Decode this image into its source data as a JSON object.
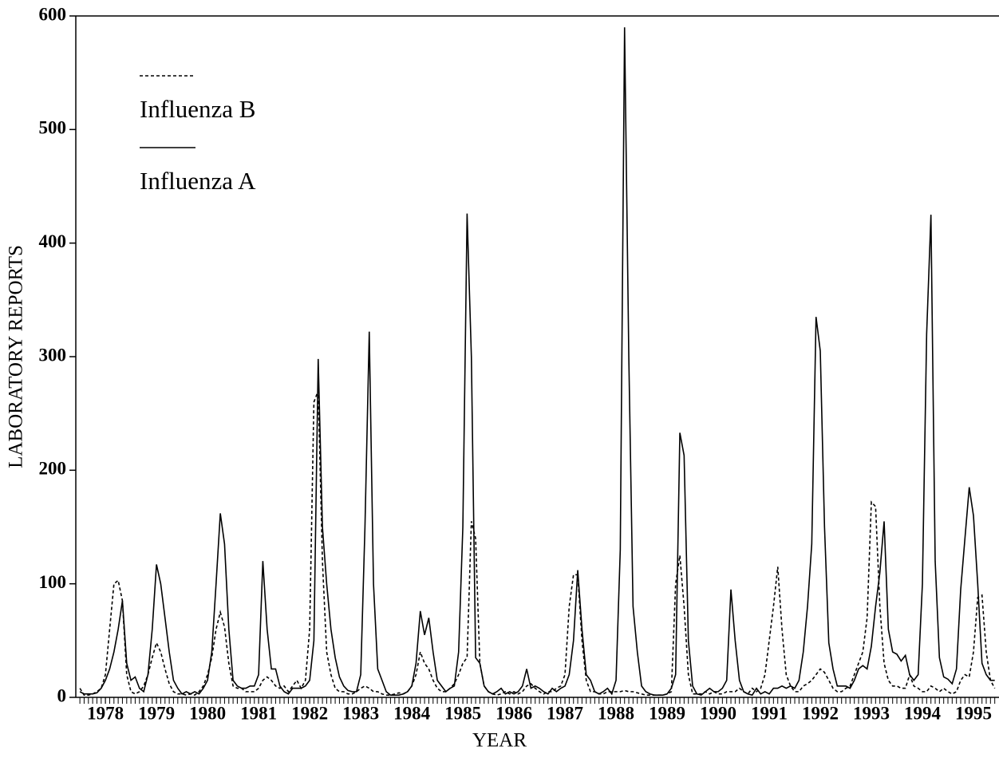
{
  "chart_data": {
    "type": "line",
    "x_label": "YEAR",
    "y_label": "LABORATORY REPORTS",
    "x": [
      1978,
      1978.083,
      1978.167,
      1978.25,
      1978.333,
      1978.417,
      1978.5,
      1978.583,
      1978.667,
      1978.75,
      1978.833,
      1978.917,
      1979,
      1979.083,
      1979.167,
      1979.25,
      1979.333,
      1979.417,
      1979.5,
      1979.583,
      1979.667,
      1979.75,
      1979.833,
      1979.917,
      1980,
      1980.083,
      1980.167,
      1980.25,
      1980.333,
      1980.417,
      1980.5,
      1980.583,
      1980.667,
      1980.75,
      1980.833,
      1980.917,
      1981,
      1981.083,
      1981.167,
      1981.25,
      1981.333,
      1981.417,
      1981.5,
      1981.583,
      1981.667,
      1981.75,
      1981.833,
      1981.917,
      1982,
      1982.083,
      1982.167,
      1982.25,
      1982.333,
      1982.417,
      1982.5,
      1982.583,
      1982.667,
      1982.75,
      1982.833,
      1982.917,
      1983,
      1983.083,
      1983.167,
      1983.25,
      1983.333,
      1983.417,
      1983.5,
      1983.583,
      1983.667,
      1983.75,
      1983.833,
      1983.917,
      1984,
      1984.083,
      1984.167,
      1984.25,
      1984.333,
      1984.417,
      1984.5,
      1984.583,
      1984.667,
      1984.75,
      1984.833,
      1984.917,
      1985,
      1985.083,
      1985.167,
      1985.25,
      1985.333,
      1985.417,
      1985.5,
      1985.583,
      1985.667,
      1985.75,
      1985.833,
      1985.917,
      1986,
      1986.083,
      1986.167,
      1986.25,
      1986.333,
      1986.417,
      1986.5,
      1986.583,
      1986.667,
      1986.75,
      1986.833,
      1986.917,
      1987,
      1987.083,
      1987.167,
      1987.25,
      1987.333,
      1987.417,
      1987.5,
      1987.583,
      1987.667,
      1987.75,
      1987.833,
      1987.917,
      1988,
      1988.083,
      1988.167,
      1988.25,
      1988.333,
      1988.417,
      1988.5,
      1988.583,
      1988.667,
      1988.75,
      1988.833,
      1988.917,
      1989,
      1989.083,
      1989.167,
      1989.25,
      1989.333,
      1989.417,
      1989.5,
      1989.583,
      1989.667,
      1989.75,
      1989.833,
      1989.917,
      1990,
      1990.083,
      1990.167,
      1990.25,
      1990.333,
      1990.417,
      1990.5,
      1990.583,
      1990.667,
      1990.75,
      1990.833,
      1990.917,
      1991,
      1991.083,
      1991.167,
      1991.25,
      1991.333,
      1991.417,
      1991.5,
      1991.583,
      1991.667,
      1991.75,
      1991.833,
      1991.917,
      1992,
      1992.083,
      1992.167,
      1992.25,
      1992.333,
      1992.417,
      1992.5,
      1992.583,
      1992.667,
      1992.75,
      1992.833,
      1992.917,
      1993,
      1993.083,
      1993.167,
      1993.25,
      1993.333,
      1993.417,
      1993.5,
      1993.583,
      1993.667,
      1993.75,
      1993.833,
      1993.917,
      1994,
      1994.083,
      1994.167,
      1994.25,
      1994.333,
      1994.417,
      1994.5,
      1994.583,
      1994.667,
      1994.75,
      1994.833,
      1994.917,
      1995,
      1995.083,
      1995.167,
      1995.25,
      1995.333,
      1995.417,
      1995.5,
      1995.583,
      1995.667,
      1995.75,
      1995.833,
      1995.917
    ],
    "series": [
      {
        "name": "Influenza B",
        "color": "#000000",
        "linestyle": "dashed",
        "values": [
          8,
          2,
          2,
          3,
          5,
          8,
          20,
          60,
          100,
          103,
          85,
          20,
          5,
          3,
          5,
          10,
          20,
          35,
          48,
          40,
          25,
          12,
          5,
          3,
          3,
          2,
          3,
          2,
          5,
          10,
          20,
          35,
          60,
          75,
          62,
          30,
          10,
          8,
          8,
          5,
          5,
          5,
          8,
          15,
          18,
          15,
          10,
          8,
          10,
          5,
          10,
          15,
          8,
          15,
          60,
          260,
          270,
          120,
          40,
          20,
          8,
          5,
          5,
          3,
          3,
          5,
          8,
          10,
          8,
          5,
          5,
          3,
          2,
          2,
          3,
          4,
          3,
          5,
          10,
          20,
          40,
          30,
          25,
          15,
          8,
          5,
          5,
          8,
          12,
          20,
          30,
          35,
          155,
          140,
          30,
          10,
          5,
          3,
          2,
          3,
          5,
          3,
          5,
          3,
          5,
          10,
          12,
          8,
          5,
          3,
          5,
          5,
          8,
          10,
          20,
          80,
          108,
          108,
          50,
          15,
          5,
          5,
          3,
          3,
          5,
          5,
          5,
          5,
          6,
          5,
          5,
          4,
          3,
          2,
          2,
          2,
          2,
          2,
          3,
          5,
          100,
          125,
          80,
          20,
          3,
          3,
          3,
          5,
          3,
          5,
          3,
          3,
          5,
          5,
          5,
          8,
          5,
          3,
          8,
          5,
          8,
          20,
          50,
          80,
          115,
          60,
          20,
          10,
          5,
          5,
          10,
          12,
          15,
          20,
          25,
          22,
          15,
          8,
          5,
          5,
          8,
          10,
          20,
          30,
          40,
          70,
          172,
          168,
          80,
          30,
          15,
          10,
          10,
          8,
          8,
          20,
          10,
          8,
          5,
          5,
          10,
          8,
          5,
          8,
          5,
          3,
          5,
          15,
          20,
          18,
          40,
          88,
          90,
          40,
          15,
          8
        ]
      },
      {
        "name": "Influenza A",
        "color": "#000000",
        "linestyle": "solid",
        "values": [
          5,
          3,
          3,
          3,
          4,
          8,
          15,
          25,
          40,
          60,
          85,
          30,
          15,
          18,
          8,
          5,
          20,
          60,
          117,
          100,
          70,
          40,
          15,
          8,
          3,
          5,
          3,
          5,
          3,
          8,
          15,
          40,
          100,
          162,
          135,
          60,
          15,
          10,
          8,
          8,
          10,
          10,
          20,
          120,
          60,
          25,
          25,
          10,
          5,
          3,
          8,
          8,
          8,
          10,
          15,
          50,
          298,
          150,
          100,
          60,
          35,
          18,
          10,
          6,
          5,
          5,
          20,
          150,
          322,
          100,
          25,
          15,
          5,
          2,
          2,
          2,
          3,
          5,
          10,
          30,
          76,
          55,
          70,
          40,
          15,
          10,
          5,
          8,
          10,
          40,
          150,
          426,
          300,
          35,
          30,
          10,
          5,
          3,
          5,
          8,
          3,
          5,
          3,
          5,
          10,
          25,
          8,
          10,
          8,
          5,
          3,
          8,
          5,
          8,
          10,
          20,
          50,
          112,
          60,
          20,
          15,
          5,
          3,
          5,
          8,
          3,
          15,
          130,
          590,
          300,
          80,
          40,
          10,
          5,
          3,
          2,
          2,
          2,
          3,
          8,
          20,
          233,
          213,
          50,
          10,
          3,
          2,
          5,
          8,
          5,
          5,
          8,
          15,
          95,
          50,
          15,
          5,
          3,
          2,
          8,
          3,
          5,
          3,
          8,
          8,
          10,
          8,
          10,
          8,
          15,
          40,
          80,
          135,
          335,
          305,
          150,
          48,
          25,
          10,
          10,
          10,
          8,
          15,
          25,
          28,
          25,
          45,
          80,
          110,
          155,
          60,
          40,
          38,
          32,
          37,
          20,
          15,
          20,
          100,
          320,
          425,
          120,
          35,
          18,
          16,
          12,
          25,
          95,
          140,
          185,
          160,
          100,
          30,
          20,
          15,
          15
        ]
      }
    ],
    "xlim": [
      1977.92,
      1996.0
    ],
    "xticks": [
      {
        "value": 1978.5,
        "label": "1978"
      },
      {
        "value": 1979.5,
        "label": "1979"
      },
      {
        "value": 1980.5,
        "label": "1980"
      },
      {
        "value": 1981.5,
        "label": "1981"
      },
      {
        "value": 1982.5,
        "label": "1982"
      },
      {
        "value": 1983.5,
        "label": "1983"
      },
      {
        "value": 1984.5,
        "label": "1984"
      },
      {
        "value": 1985.5,
        "label": "1985"
      },
      {
        "value": 1986.5,
        "label": "1986"
      },
      {
        "value": 1987.5,
        "label": "1987"
      },
      {
        "value": 1988.5,
        "label": "1988"
      },
      {
        "value": 1989.5,
        "label": "1989"
      },
      {
        "value": 1990.5,
        "label": "1990"
      },
      {
        "value": 1991.5,
        "label": "1991"
      },
      {
        "value": 1992.5,
        "label": "1992"
      },
      {
        "value": 1993.5,
        "label": "1993"
      },
      {
        "value": 1994.5,
        "label": "1994"
      },
      {
        "value": 1995.5,
        "label": "1995"
      }
    ],
    "ylim": [
      0,
      600
    ],
    "yticks": [
      0,
      100,
      200,
      300,
      400,
      500,
      600
    ],
    "grid": false
  }
}
